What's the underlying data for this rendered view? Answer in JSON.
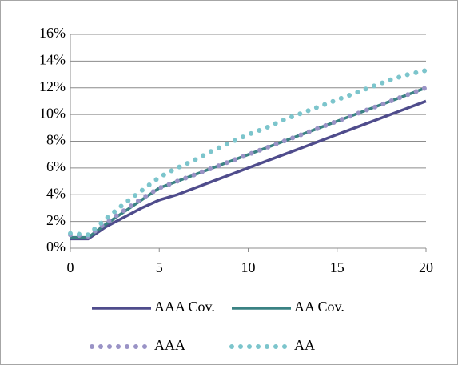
{
  "chart_data": {
    "type": "line",
    "x": [
      0,
      1,
      2,
      3,
      4,
      5,
      6,
      7,
      8,
      9,
      10,
      11,
      12,
      13,
      14,
      15,
      16,
      17,
      18,
      19,
      20
    ],
    "xlim": [
      0,
      20
    ],
    "xticks": [
      0,
      5,
      10,
      15,
      20
    ],
    "ylim": [
      0,
      16
    ],
    "yticks": [
      {
        "value": 0,
        "label": "0%"
      },
      {
        "value": 2,
        "label": "2%"
      },
      {
        "value": 4,
        "label": "4%"
      },
      {
        "value": 6,
        "label": "6%"
      },
      {
        "value": 8,
        "label": "8%"
      },
      {
        "value": 10,
        "label": "10%"
      },
      {
        "value": 12,
        "label": "12%"
      },
      {
        "value": 14,
        "label": "14%"
      },
      {
        "value": 16,
        "label": "16%"
      }
    ],
    "grid": true,
    "series": [
      {
        "name": "AAA Cov.",
        "color": "#4f4c8c",
        "style": "solid",
        "values": [
          0.7,
          0.7,
          1.6,
          2.3,
          3.0,
          3.6,
          4.0,
          4.5,
          5.0,
          5.5,
          6.0,
          6.5,
          7.0,
          7.5,
          8.0,
          8.5,
          9.0,
          9.5,
          10.0,
          10.5,
          11.0
        ]
      },
      {
        "name": "AA Cov.",
        "color": "#3a8283",
        "style": "solid",
        "values": [
          0.8,
          0.8,
          1.8,
          2.7,
          3.6,
          4.5,
          5.0,
          5.5,
          6.0,
          6.5,
          7.0,
          7.5,
          8.0,
          8.5,
          9.0,
          9.5,
          10.0,
          10.5,
          11.0,
          11.5,
          12.0
        ]
      },
      {
        "name": "AAA",
        "color": "#9a93c6",
        "style": "dotted",
        "values": [
          1.0,
          0.9,
          1.9,
          2.8,
          3.7,
          4.5,
          5.0,
          5.5,
          6.0,
          6.5,
          7.0,
          7.5,
          8.0,
          8.5,
          9.0,
          9.5,
          10.0,
          10.5,
          11.0,
          11.5,
          12.0
        ]
      },
      {
        "name": "AA",
        "color": "#7cc5cc",
        "style": "dotted",
        "values": [
          1.1,
          1.0,
          2.2,
          3.3,
          4.3,
          5.3,
          6.0,
          6.6,
          7.3,
          7.9,
          8.5,
          9.0,
          9.6,
          10.1,
          10.6,
          11.1,
          11.6,
          12.1,
          12.6,
          13.0,
          13.3
        ]
      }
    ]
  }
}
